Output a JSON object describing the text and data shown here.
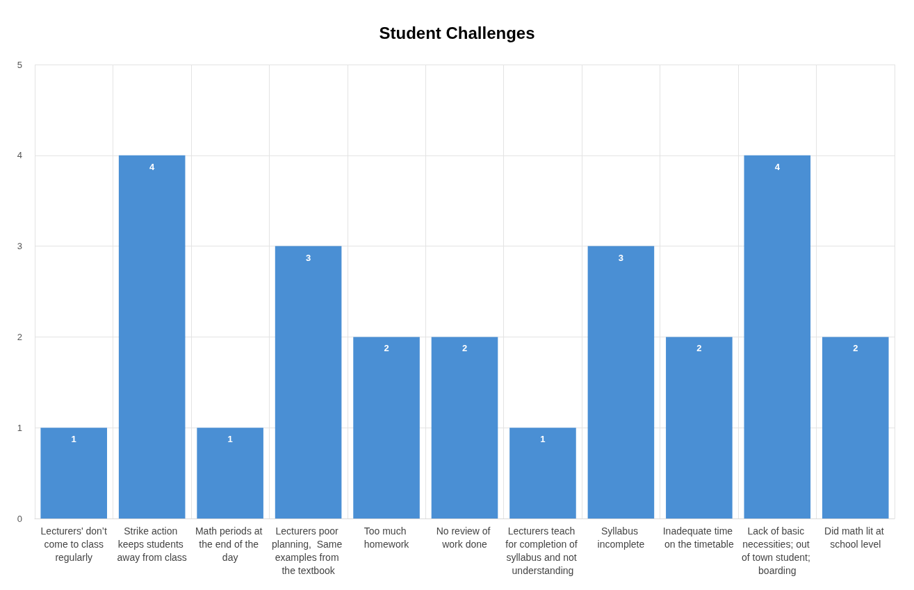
{
  "chart_data": {
    "type": "bar",
    "title": "Student Challenges",
    "categories": [
      "Lecturers' don’t come to class regularly",
      "Strike action keeps students away from class",
      "Math periods at the end of the day",
      "Lecturers poor planning,  Same examples from the textbook",
      "Too much homework",
      "No review of work done",
      "Lecturers teach for completion of syllabus and not understanding",
      "Syllabus incomplete",
      "Inadequate time on the timetable",
      "Lack of basic necessities; out of town student; boarding",
      "Did math lit at school level"
    ],
    "values": [
      1,
      4,
      1,
      3,
      2,
      2,
      1,
      3,
      2,
      4,
      2
    ],
    "color": "#4a8fd4",
    "ylim": [
      0,
      5
    ],
    "yticks": [
      0,
      1,
      2,
      3,
      4,
      5
    ],
    "grid": true,
    "data_labels": true
  }
}
